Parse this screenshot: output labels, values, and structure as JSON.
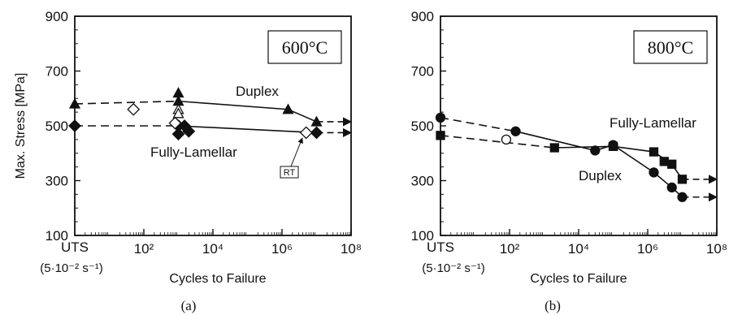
{
  "chart_data": [
    {
      "type": "scatter",
      "panel_label": "(a)",
      "annotation": "600°C",
      "ylabel": "Max. Stress  [MPa]",
      "xlabel": "Cycles to Failure",
      "xscale": "log",
      "x_first_tick": "UTS",
      "x_first_tick_sub": "(5·10⁻² s⁻¹)",
      "ylim": [
        100,
        900
      ],
      "xlim": [
        1,
        100000000
      ],
      "yticks": [
        "100",
        "300",
        "500",
        "700",
        "900"
      ],
      "xticks": [
        "10²",
        "10⁴",
        "10⁶",
        "10⁸"
      ],
      "rt_label": "RT",
      "series": [
        {
          "name": "Duplex",
          "marker": "triangle",
          "points_filled": [
            [
              1,
              580
            ],
            [
              1000,
              620
            ],
            [
              1000,
              590
            ],
            [
              1500000,
              560
            ],
            [
              10000000,
              515
            ]
          ],
          "points_open": [
            [
              1000,
              560
            ],
            [
              1000,
              545
            ]
          ],
          "curve": [
            [
              1,
              580
            ],
            [
              1000,
              590
            ],
            [
              1500000,
              560
            ],
            [
              10000000,
              515
            ]
          ],
          "extrapolation_end": [
            100000000,
            515
          ]
        },
        {
          "name": "Fully-Lamellar",
          "marker": "diamond",
          "points_filled": [
            [
              1,
              500
            ],
            [
              1000,
              500
            ],
            [
              1000,
              470
            ],
            [
              1500,
              500
            ],
            [
              2000,
              480
            ],
            [
              10000000,
              475
            ]
          ],
          "points_open": [
            [
              50,
              560
            ],
            [
              800,
              510
            ],
            [
              5000000,
              475
            ]
          ],
          "curve": [
            [
              1,
              500
            ],
            [
              1000,
              500
            ],
            [
              10000000,
              475
            ]
          ],
          "extrapolation_end": [
            100000000,
            475
          ]
        }
      ]
    },
    {
      "type": "scatter",
      "panel_label": "(b)",
      "annotation": "800°C",
      "ylabel": "",
      "xlabel": "Cycles to Failure",
      "xscale": "log",
      "x_first_tick": "UTS",
      "x_first_tick_sub": "(5·10⁻² s⁻¹)",
      "ylim": [
        100,
        900
      ],
      "xlim": [
        1,
        100000000
      ],
      "yticks": [
        "100",
        "300",
        "500",
        "700",
        "900"
      ],
      "xticks": [
        "10²",
        "10⁴",
        "10⁶",
        "10⁸"
      ],
      "series": [
        {
          "name": "Fully-Lamellar",
          "marker": "square",
          "points_filled": [
            [
              1,
              465
            ],
            [
              2000,
              420
            ],
            [
              100000,
              425
            ],
            [
              1500000,
              405
            ],
            [
              3000000,
              370
            ],
            [
              5000000,
              360
            ],
            [
              10000000,
              305
            ]
          ],
          "curve": [
            [
              1,
              465
            ],
            [
              2000,
              420
            ],
            [
              100000,
              425
            ],
            [
              1500000,
              405
            ],
            [
              5000000,
              360
            ],
            [
              10000000,
              305
            ]
          ],
          "extrapolation_end": [
            100000000,
            305
          ]
        },
        {
          "name": "Duplex",
          "marker": "circle",
          "points_filled": [
            [
              1,
              530
            ],
            [
              150,
              480
            ],
            [
              30000,
              410
            ],
            [
              100000,
              430
            ],
            [
              1500000,
              330
            ],
            [
              5000000,
              275
            ],
            [
              10000000,
              240
            ]
          ],
          "points_open": [
            [
              80,
              450
            ]
          ],
          "curve": [
            [
              1,
              530
            ],
            [
              150,
              480
            ],
            [
              30000,
              410
            ],
            [
              100000,
              430
            ],
            [
              1500000,
              330
            ],
            [
              5000000,
              275
            ],
            [
              10000000,
              240
            ]
          ],
          "extrapolation_end": [
            100000000,
            240
          ]
        }
      ]
    }
  ]
}
